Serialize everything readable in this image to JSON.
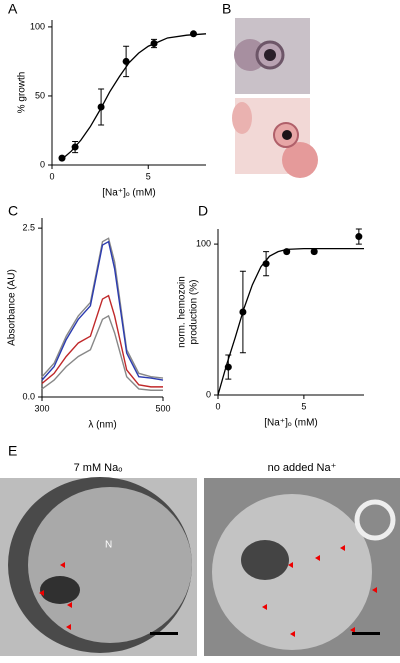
{
  "chart_data": [
    {
      "type": "scatter",
      "y_label": "% growth",
      "x_label": "[Na⁺]ₒ  (mM)",
      "color": "#000000",
      "x": [
        0.52,
        1.2,
        2.55,
        3.85,
        5.3,
        7.35
      ],
      "y": [
        5,
        13,
        42,
        75,
        88,
        95
      ],
      "errors": [
        1,
        4,
        13,
        11,
        3,
        1
      ],
      "fit_x": [
        0.5,
        1,
        1.5,
        2,
        2.5,
        3,
        3.5,
        4,
        4.5,
        5,
        5.5,
        6,
        7,
        8
      ],
      "fit_y": [
        4,
        10,
        18,
        28,
        40,
        53,
        64,
        74,
        81,
        86,
        89,
        92,
        94,
        95
      ],
      "xlim": [
        0,
        8
      ],
      "ylim": [
        0,
        105
      ],
      "xticks": [
        0,
        5
      ],
      "yticks": [
        0,
        50,
        100
      ]
    },
    {
      "type": "line",
      "y_label": "Absorbance (AU)",
      "x_label": "λ  (nm)",
      "x": [
        300,
        320,
        340,
        360,
        380,
        400,
        410,
        420,
        440,
        460,
        480,
        500
      ],
      "series": [
        {
          "color": "#888888",
          "values": [
            0.3,
            0.5,
            0.9,
            1.2,
            1.4,
            2.3,
            2.35,
            2.0,
            0.7,
            0.35,
            0.3,
            0.28
          ]
        },
        {
          "color": "#2b3bb0",
          "values": [
            0.25,
            0.45,
            0.85,
            1.15,
            1.35,
            2.25,
            2.3,
            1.9,
            0.65,
            0.3,
            0.28,
            0.25
          ]
        },
        {
          "color": "#c0282a",
          "values": [
            0.2,
            0.35,
            0.6,
            0.8,
            0.9,
            1.45,
            1.5,
            1.2,
            0.4,
            0.18,
            0.15,
            0.15
          ]
        },
        {
          "color": "#888888",
          "values": [
            0.12,
            0.25,
            0.45,
            0.6,
            0.7,
            1.15,
            1.2,
            0.95,
            0.3,
            0.12,
            0.1,
            0.1
          ]
        }
      ],
      "xlim": [
        300,
        500
      ],
      "ylim": [
        0,
        2.65
      ],
      "xticks": [
        300,
        500
      ],
      "yticks": [
        {
          "value": 0,
          "label": "0.0"
        },
        2.5
      ]
    },
    {
      "type": "scatter",
      "y_label": [
        "norm.  hemozoin",
        "production  (%)"
      ],
      "x_label": "[Na⁺]ₒ  (mM)",
      "color": "#000000",
      "x": [
        0.6,
        1.45,
        2.8,
        4.0,
        5.6,
        8.2
      ],
      "y": [
        18.5,
        55,
        87,
        95,
        95,
        105
      ],
      "errors": [
        8,
        27,
        8,
        1,
        1,
        5
      ],
      "fit_x": [
        0,
        0.5,
        1,
        1.5,
        2,
        2.5,
        3,
        3.5,
        4,
        5,
        8.5
      ],
      "fit_y": [
        0,
        20,
        38,
        57,
        73,
        85,
        92,
        95,
        96.5,
        97,
        97
      ],
      "xlim": [
        0,
        8.5
      ],
      "ylim": [
        0,
        110
      ],
      "xticks": [
        0,
        5
      ],
      "yticks": [
        0,
        100
      ]
    }
  ],
  "panels": {
    "labels": [
      "A",
      "B",
      "C",
      "D",
      "E"
    ],
    "micrographs": {
      "left_caption": "7 mM Naₒ",
      "right_caption": "no added Na⁺",
      "nucleus_label": "N"
    }
  }
}
